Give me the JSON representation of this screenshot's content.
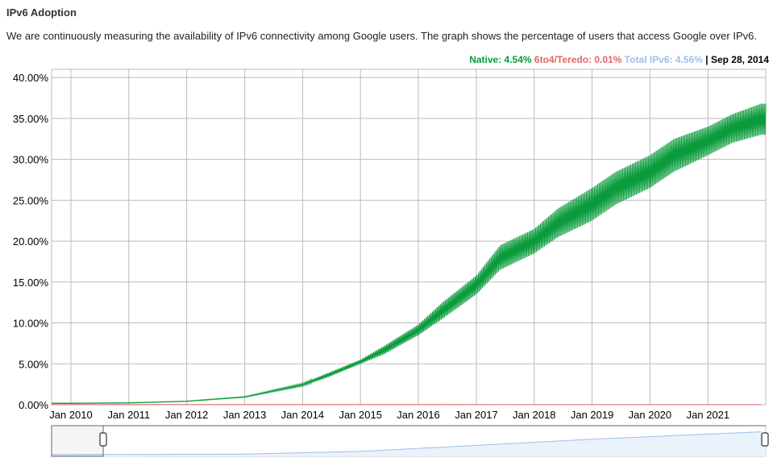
{
  "header": {
    "title": "IPv6 Adoption",
    "description": "We are continuously measuring the availability of IPv6 connectivity among Google users. The graph shows the percentage of users that access Google over IPv6."
  },
  "legend": {
    "native": "Native: 4.54%",
    "teredo": "6to4/Teredo: 0.01%",
    "total": "Total IPv6: 4.56%",
    "separator": " | ",
    "date": "Sep 28, 2014"
  },
  "colors": {
    "native": "#0a9b3c",
    "teredo": "#e06666",
    "total": "#9ebfe6",
    "grid": "#bbbbbb"
  },
  "chart_data": {
    "type": "area",
    "x_tick_labels": [
      "Jan 2010",
      "Jan 2011",
      "Jan 2012",
      "Jan 2013",
      "Jan 2014",
      "Jan 2015",
      "Jan 2016",
      "Jan 2017",
      "Jan 2018",
      "Jan 2019",
      "Jan 2020",
      "Jan 2021"
    ],
    "y_tick_labels": [
      "0.00%",
      "5.00%",
      "10.00%",
      "15.00%",
      "20.00%",
      "25.00%",
      "30.00%",
      "35.00%",
      "40.00%"
    ],
    "ylim": [
      0,
      41
    ],
    "xlim": [
      "2009-09-01",
      "2021-12-31"
    ],
    "grid": true,
    "legend_position": "top-right",
    "series": [
      {
        "name": "Native",
        "x": [
          "2009-09",
          "2010-01",
          "2011-01",
          "2012-01",
          "2013-01",
          "2014-01",
          "2014-06",
          "2015-01",
          "2015-06",
          "2016-01",
          "2016-06",
          "2017-01",
          "2017-06",
          "2018-01",
          "2018-06",
          "2019-01",
          "2019-06",
          "2020-01",
          "2020-06",
          "2021-01",
          "2021-06",
          "2021-12"
        ],
        "lower": [
          0.15,
          0.15,
          0.2,
          0.4,
          0.9,
          2.3,
          3.3,
          5.0,
          6.2,
          8.5,
          10.5,
          13.5,
          16.5,
          18.5,
          20.5,
          22.5,
          24.5,
          26.5,
          28.5,
          30.5,
          32.0,
          33.0
        ],
        "upper": [
          0.2,
          0.2,
          0.25,
          0.45,
          1.0,
          2.6,
          3.8,
          5.5,
          7.2,
          9.8,
          12.5,
          15.8,
          19.5,
          21.5,
          24.0,
          26.5,
          28.5,
          30.5,
          32.5,
          34.0,
          35.5,
          36.8
        ]
      },
      {
        "name": "6to4/Teredo",
        "x": [
          "2009-09",
          "2014-11",
          "2015-01",
          "2021-12"
        ],
        "y": [
          0.02,
          0.02,
          0.02,
          0.01
        ]
      }
    ],
    "navigator": {
      "x": [
        "2009-09",
        "2011-01",
        "2013-01",
        "2015-01",
        "2017-01",
        "2019-01",
        "2021-01",
        "2021-12"
      ],
      "y": [
        0.2,
        0.3,
        1.0,
        5.2,
        14.5,
        24.0,
        32.0,
        35.5
      ]
    }
  }
}
